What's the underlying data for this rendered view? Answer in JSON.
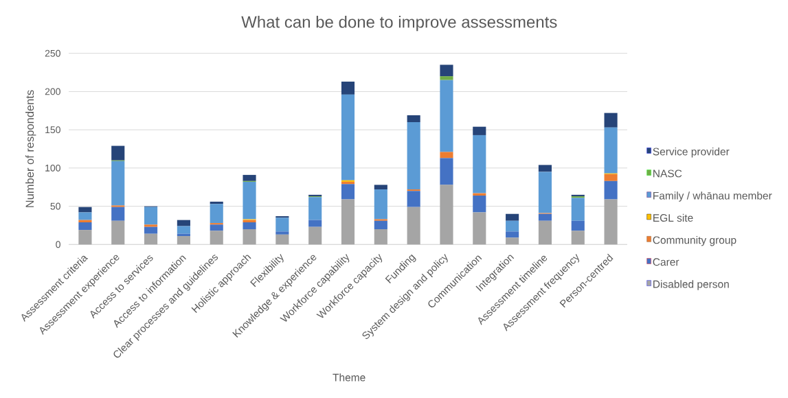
{
  "chart_data": {
    "type": "bar",
    "title": "What can be done to improve assessments",
    "xlabel": "Theme",
    "ylabel": "Number of respondents",
    "categories": [
      "Assessment criteria",
      "Assessment experience",
      "Access to services",
      "Access to information",
      "Clear processes and guidelines",
      "Holistic approach",
      "Flexibility",
      "Knowledge & experience",
      "Workforce capability",
      "Workforce capacity",
      "Funding",
      "System design and policy",
      "Communication",
      "Integration",
      "Assessment timeline",
      "Assessment frequency",
      "Person-centred"
    ],
    "series": [
      {
        "name": "Disabled person",
        "color": "#a5a5a5",
        "values": [
          19,
          31,
          14,
          11,
          18,
          20,
          13,
          23,
          59,
          20,
          49,
          78,
          42,
          9,
          31,
          18,
          59
        ]
      },
      {
        "name": "Carer",
        "color": "#4472c4",
        "values": [
          10,
          18,
          9,
          3,
          8,
          9,
          4,
          9,
          20,
          11,
          21,
          35,
          22,
          8,
          9,
          13,
          24
        ]
      },
      {
        "name": "Community group",
        "color": "#ed7d31",
        "values": [
          3,
          2,
          3,
          0,
          2,
          3,
          0,
          0,
          3,
          2,
          2,
          8,
          3,
          0,
          1,
          0,
          9
        ]
      },
      {
        "name": "EGL site",
        "color": "#ffc000",
        "values": [
          0,
          0,
          0,
          0,
          0,
          1,
          0,
          0,
          2,
          0,
          0,
          0,
          0,
          0,
          0,
          0,
          1
        ]
      },
      {
        "name": "Family / whānau member",
        "color": "#5b9bd5",
        "values": [
          10,
          58,
          23,
          10,
          25,
          49,
          18,
          30,
          112,
          39,
          88,
          94,
          76,
          14,
          54,
          30,
          60
        ]
      },
      {
        "name": "NASC",
        "color": "#70ad47",
        "values": [
          0,
          1,
          0,
          0,
          0,
          1,
          0,
          1,
          0,
          0,
          0,
          5,
          0,
          0,
          0,
          2,
          0
        ]
      },
      {
        "name": "Service provider",
        "color": "#264478",
        "values": [
          7,
          19,
          1,
          8,
          3,
          8,
          2,
          2,
          17,
          6,
          9,
          15,
          11,
          9,
          9,
          2,
          19
        ]
      }
    ],
    "stacked": true,
    "ylim": [
      0,
      250
    ],
    "yticks": [
      0,
      50,
      100,
      150,
      200,
      250
    ],
    "grid": "y",
    "legend": "right"
  }
}
